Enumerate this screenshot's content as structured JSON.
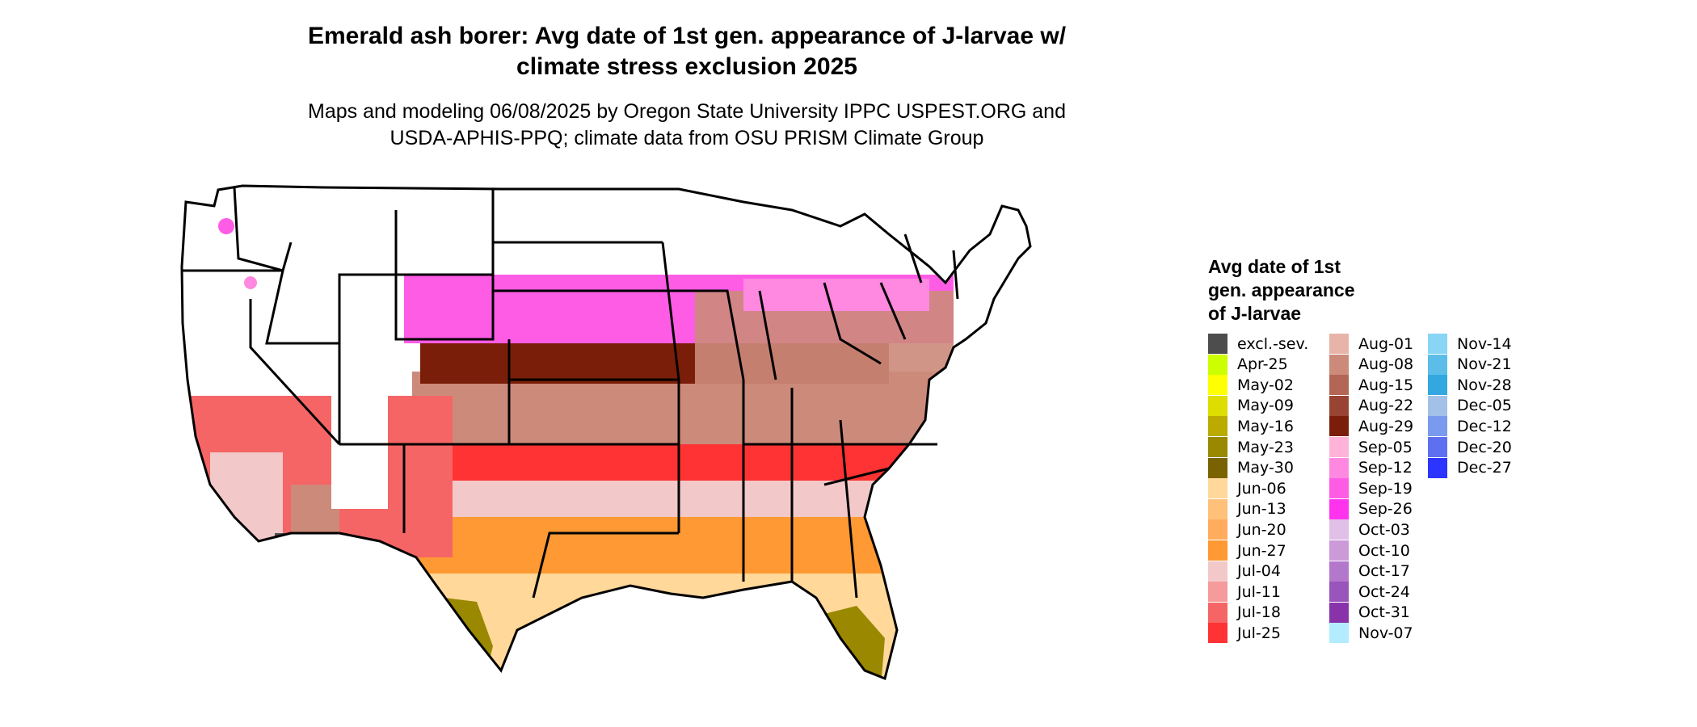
{
  "title_line1": "Emerald ash borer: Avg date of 1st gen. appearance of J-larvae w/",
  "title_line2": "climate stress exclusion 2025",
  "subtitle_line1": "Maps and modeling 06/08/2025 by Oregon State University IPPC USPEST.ORG and",
  "subtitle_line2": "USDA-APHIS-PPQ; climate data from OSU PRISM Climate Group",
  "legend": {
    "title_line1": "Avg date of 1st",
    "title_line2": "gen. appearance",
    "title_line3": "of J-larvae",
    "columns": [
      [
        {
          "label": "excl.-sev.",
          "color": "#4d4d4d"
        },
        {
          "label": "Apr-25",
          "color": "#ccff00"
        },
        {
          "label": "May-02",
          "color": "#ffff00"
        },
        {
          "label": "May-09",
          "color": "#dddd00"
        },
        {
          "label": "May-16",
          "color": "#bbaa00"
        },
        {
          "label": "May-23",
          "color": "#998800"
        },
        {
          "label": "May-30",
          "color": "#7a6200"
        },
        {
          "label": "Jun-06",
          "color": "#ffd89a"
        },
        {
          "label": "Jun-13",
          "color": "#ffc07a"
        },
        {
          "label": "Jun-20",
          "color": "#ffad5c"
        },
        {
          "label": "Jun-27",
          "color": "#ff9933"
        },
        {
          "label": "Jul-04",
          "color": "#f2c8c8"
        },
        {
          "label": "Jul-11",
          "color": "#f59b9b"
        },
        {
          "label": "Jul-18",
          "color": "#f56565"
        },
        {
          "label": "Jul-25",
          "color": "#ff3333"
        }
      ],
      [
        {
          "label": "Aug-01",
          "color": "#e8b4aa"
        },
        {
          "label": "Aug-08",
          "color": "#cc8a7a"
        },
        {
          "label": "Aug-15",
          "color": "#b36655"
        },
        {
          "label": "Aug-22",
          "color": "#994433"
        },
        {
          "label": "Aug-29",
          "color": "#7a1e0a"
        },
        {
          "label": "Sep-05",
          "color": "#ffb3d9"
        },
        {
          "label": "Sep-12",
          "color": "#ff88e0"
        },
        {
          "label": "Sep-19",
          "color": "#ff5ce6"
        },
        {
          "label": "Sep-26",
          "color": "#ff33ee"
        },
        {
          "label": "Oct-03",
          "color": "#e0c0e6"
        },
        {
          "label": "Oct-10",
          "color": "#cc99d9"
        },
        {
          "label": "Oct-17",
          "color": "#b377cc"
        },
        {
          "label": "Oct-24",
          "color": "#9955bb"
        },
        {
          "label": "Oct-31",
          "color": "#8833aa"
        },
        {
          "label": "Nov-07",
          "color": "#b3ebff"
        }
      ],
      [
        {
          "label": "Nov-14",
          "color": "#88d5f5"
        },
        {
          "label": "Nov-21",
          "color": "#5cbde8"
        },
        {
          "label": "Nov-28",
          "color": "#33a8e0"
        },
        {
          "label": "Dec-05",
          "color": "#a3c1e8"
        },
        {
          "label": "Dec-12",
          "color": "#7a9aee"
        },
        {
          "label": "Dec-20",
          "color": "#5c70f0"
        },
        {
          "label": "Dec-27",
          "color": "#2b35ff"
        }
      ]
    ]
  }
}
